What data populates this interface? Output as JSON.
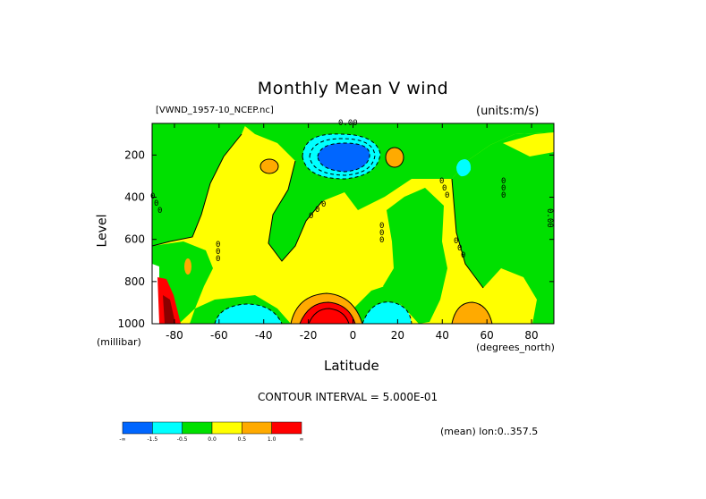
{
  "chart_data": {
    "type": "heatmap",
    "title": "Monthly Mean V wind",
    "dataset": "[VWND_1957-10_NCEP.nc]",
    "units_label": "(units:m/s)",
    "xlabel": "Latitude",
    "x_units": "(degrees_north)",
    "ylabel": "Level",
    "y_units": "(millibar)",
    "xlim": [
      -90,
      90
    ],
    "ylim": [
      1000,
      50
    ],
    "x_ticks": [
      -80,
      -60,
      -40,
      -20,
      0,
      20,
      40,
      60,
      80
    ],
    "y_ticks": [
      200,
      400,
      600,
      800,
      1000
    ],
    "contour_interval_text": "CONTOUR INTERVAL = 5.000E-01",
    "mean_text": "(mean) lon:0..357.5",
    "inline_labels": [
      "0.00",
      "0.00"
    ],
    "colorbar": {
      "bins": [
        {
          "color": "#0066ff",
          "label": "-∞"
        },
        {
          "color": "#00ffff",
          "label": "-1.5"
        },
        {
          "color": "#00e000",
          "label": "-0.5"
        },
        {
          "color": "#ffff00",
          "label": "0.0"
        },
        {
          "color": "#ffaa00",
          "label": "0.5"
        },
        {
          "color": "#ff0000",
          "label": "1.0"
        }
      ],
      "end_label": "∞"
    },
    "grid": false
  }
}
